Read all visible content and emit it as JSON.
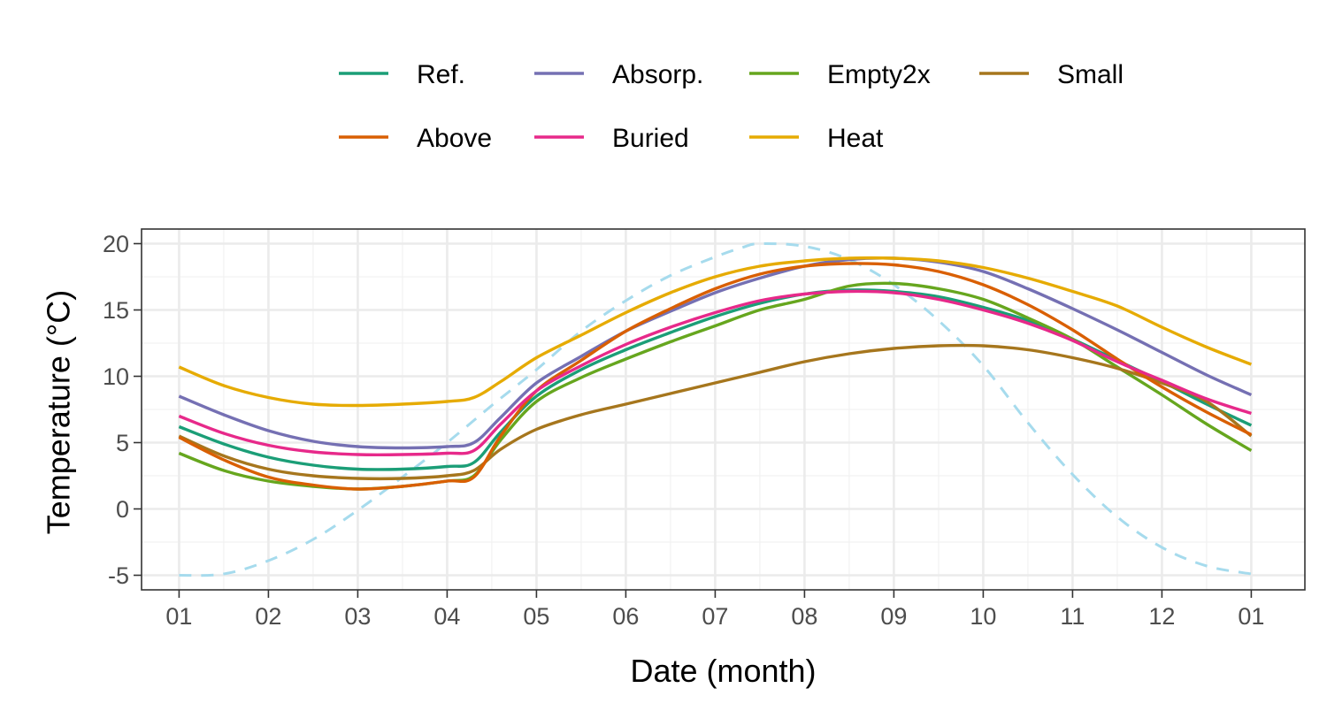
{
  "chart_data": {
    "type": "line",
    "title": "",
    "xlabel": "Date (month)",
    "ylabel": "Temperature (°C)",
    "x_tick_labels": [
      "01",
      "02",
      "03",
      "04",
      "05",
      "06",
      "07",
      "08",
      "09",
      "10",
      "11",
      "12",
      "01"
    ],
    "y_ticks": [
      -5,
      0,
      5,
      10,
      15,
      20
    ],
    "xlim": [
      -0.42,
      12.6
    ],
    "ylim": [
      -6.1,
      21.1
    ],
    "grid": true,
    "legend_position": "top",
    "x": [
      0,
      0.5,
      1,
      1.5,
      2,
      2.5,
      3,
      3.3,
      3.6,
      4,
      4.5,
      5,
      5.5,
      6,
      6.5,
      7,
      7.5,
      8,
      8.5,
      9,
      9.5,
      10,
      10.5,
      11,
      11.5,
      12
    ],
    "series": [
      {
        "name": "Ref.",
        "color": "#1b9e77",
        "values": [
          6.2,
          4.9,
          3.9,
          3.3,
          3.0,
          3.0,
          3.2,
          3.5,
          5.8,
          8.5,
          10.5,
          12.0,
          13.3,
          14.5,
          15.5,
          16.2,
          16.5,
          16.4,
          16.0,
          15.2,
          14.2,
          12.8,
          11.2,
          9.6,
          7.9,
          6.3
        ]
      },
      {
        "name": "Absorp.",
        "color": "#7570b3",
        "values": [
          8.5,
          7.1,
          5.9,
          5.1,
          4.7,
          4.6,
          4.7,
          5.0,
          6.9,
          9.5,
          11.5,
          13.4,
          14.9,
          16.3,
          17.4,
          18.3,
          18.8,
          18.9,
          18.6,
          17.9,
          16.6,
          15.1,
          13.5,
          11.8,
          10.1,
          8.6
        ]
      },
      {
        "name": "Empty2x",
        "color": "#66a61e",
        "values": [
          4.2,
          2.9,
          2.1,
          1.7,
          1.5,
          1.7,
          2.1,
          2.5,
          5.2,
          8.1,
          9.9,
          11.3,
          12.6,
          13.8,
          15.0,
          15.8,
          16.8,
          17.0,
          16.6,
          15.8,
          14.4,
          12.8,
          10.7,
          8.6,
          6.4,
          4.4
        ]
      },
      {
        "name": "Small",
        "color": "#a6761d",
        "values": [
          5.5,
          4.0,
          3.0,
          2.5,
          2.3,
          2.3,
          2.5,
          2.9,
          4.5,
          6.0,
          7.1,
          7.9,
          8.7,
          9.5,
          10.3,
          11.1,
          11.7,
          12.1,
          12.3,
          12.3,
          12.0,
          11.4,
          10.6,
          9.5,
          8.1,
          5.5
        ]
      },
      {
        "name": "Above",
        "color": "#d95f02",
        "values": [
          5.4,
          3.7,
          2.4,
          1.8,
          1.5,
          1.7,
          2.1,
          2.4,
          5.5,
          8.9,
          11.2,
          13.4,
          15.1,
          16.6,
          17.7,
          18.3,
          18.5,
          18.4,
          17.9,
          16.9,
          15.4,
          13.5,
          11.3,
          9.2,
          7.3,
          5.6
        ]
      },
      {
        "name": "Buried",
        "color": "#e7298a",
        "values": [
          7.0,
          5.7,
          4.8,
          4.3,
          4.1,
          4.1,
          4.2,
          4.4,
          6.4,
          8.9,
          10.8,
          12.4,
          13.7,
          14.8,
          15.7,
          16.2,
          16.4,
          16.3,
          15.8,
          15.0,
          14.0,
          12.7,
          11.1,
          9.7,
          8.3,
          7.2
        ]
      },
      {
        "name": "Heat",
        "color": "#e6ab02",
        "values": [
          10.7,
          9.3,
          8.4,
          7.9,
          7.8,
          7.9,
          8.1,
          8.4,
          9.6,
          11.4,
          13.1,
          14.8,
          16.3,
          17.5,
          18.3,
          18.7,
          18.9,
          18.9,
          18.7,
          18.2,
          17.4,
          16.4,
          15.3,
          13.7,
          12.2,
          10.9
        ]
      }
    ],
    "reference_curve": {
      "color": "#a6dbed",
      "style": "dashed",
      "x": [
        0,
        0.5,
        1,
        1.5,
        2,
        2.5,
        3,
        3.5,
        4,
        4.5,
        5,
        5.5,
        6,
        6.3,
        6.5,
        7,
        7.5,
        8,
        8.5,
        9,
        9.5,
        10,
        10.5,
        11,
        11.5,
        12
      ],
      "values": [
        -5.0,
        -4.9,
        -3.9,
        -2.3,
        -0.1,
        2.4,
        5.0,
        7.8,
        10.5,
        13.4,
        15.7,
        17.6,
        19.0,
        19.7,
        20.0,
        19.8,
        18.8,
        16.9,
        14.2,
        10.8,
        6.5,
        2.6,
        -0.6,
        -2.9,
        -4.3,
        -4.9
      ]
    },
    "legend_rows": [
      [
        "Ref.",
        "Absorp.",
        "Empty2x",
        "Small"
      ],
      [
        "Above",
        "Buried",
        "Heat"
      ]
    ]
  }
}
